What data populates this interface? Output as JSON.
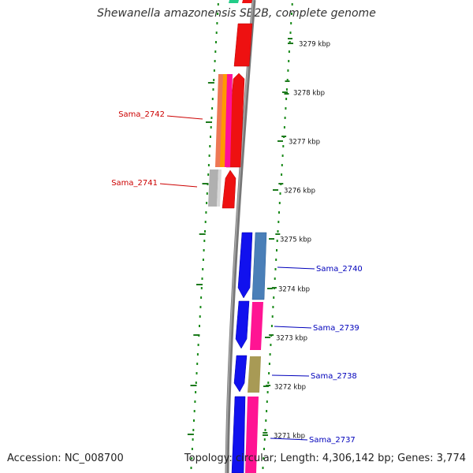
{
  "title": "Shewanella amazonensis SB2B, complete genome",
  "footer": {
    "accession": "Accession: NC_008700",
    "topology": "Topology: circular; Length: 4,306,142 bp; Genes: 3,774"
  },
  "colors": {
    "forward": "#ee1111",
    "reverse": "#1111ee",
    "tick": "#1d7a1d",
    "dot": "#1a8a1a",
    "label_top": "#cc0000",
    "label_bottom": "#0000bb"
  },
  "kbp_ticks": [
    "3279 kbp",
    "3278 kbp",
    "3277 kbp",
    "3276 kbp",
    "3275 kbp",
    "3274 kbp",
    "3273 kbp",
    "3272 kbp",
    "3271 kbp"
  ],
  "gene_labels": [
    {
      "text": "Sama_2742",
      "group": "top"
    },
    {
      "text": "Sama_2741",
      "group": "top"
    },
    {
      "text": "Sama_2740",
      "group": "bottom"
    },
    {
      "text": "Sama_2739",
      "group": "bottom"
    },
    {
      "text": "Sama_2738",
      "group": "bottom"
    },
    {
      "text": "Sama_2737",
      "group": "bottom"
    }
  ]
}
